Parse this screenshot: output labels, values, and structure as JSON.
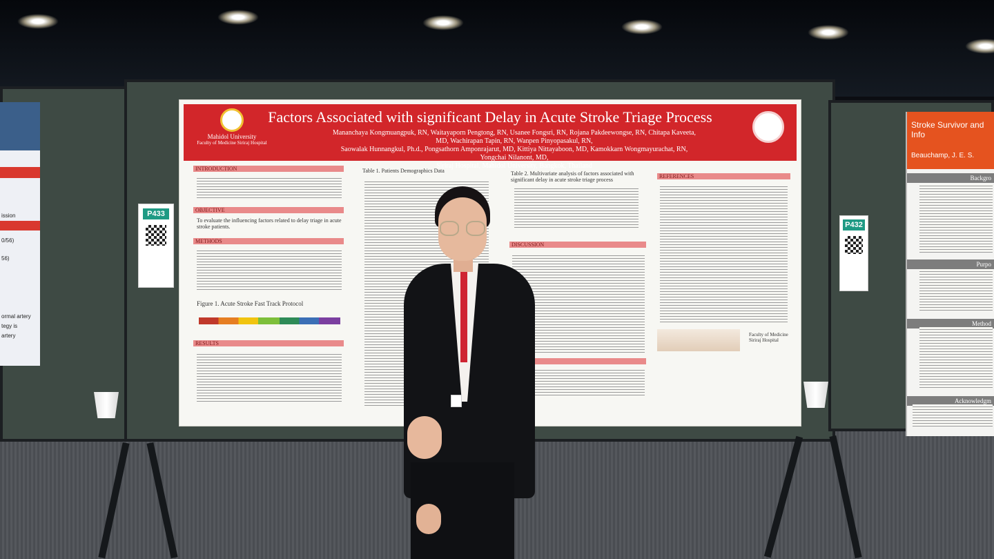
{
  "poster": {
    "title": "Factors Associated with significant Delay in Acute Stroke Triage Process",
    "authors_line1": "Mananchaya Kongmuangpuk, RN,  Waitayaporn Pengtong, RN,  Usanee Fongsri, RN, Rojana Pakdeewongse, RN, Chitapa Kaveeta, MD, Wachirapan Tapin, RN, Wanpen Pinyopasakul, RN,",
    "authors_line2": "Saowalak Hunnangkul, Ph.d., Pongsathorn Amponrajarut, MD, Kittiya Nittayaboon, MD, Kamokkarn Wongmayurachat, RN, Yongchai Nilanont, MD,",
    "affiliation": "Siriraj Hospital, Mahidol University, Bangkok, Thailand",
    "logo_text": "Mahidol University",
    "logo_subtext": "Faculty of Medicine Siriraj Hospital",
    "sections": {
      "introduction": "INTRODUCTION",
      "objective": "OBJECTIVE",
      "methods": "METHODS",
      "results": "RESULTS",
      "discussion": "DISCUSSION",
      "references": "REFERENCES"
    },
    "table1_title": "Table 1. Patients Demographics Data",
    "table2_title": "Table 2. Multivariate analysis of factors associated with significant delay in acute stroke triage process",
    "figure1_title": "Figure 1. Acute Stroke Fast Track Protocol",
    "objective_text": "To evaluate the influencing factors related to delay triage in acute stroke patients.",
    "footer_logo": "Faculty of Medicine Siriraj Hospital"
  },
  "tags": {
    "left_id": "P433",
    "right_id": "P432"
  },
  "right_poster": {
    "title": "Stroke Survivor and Info",
    "authors": "Beauchamp, J. E. S.",
    "headers": [
      "Backgro",
      "Purpo",
      "Method",
      "Acknowledgm"
    ]
  },
  "left_poster": {
    "labels": [
      "ission",
      "0/56)",
      "56)",
      "ormal artery",
      "tegy is",
      "artery"
    ]
  }
}
